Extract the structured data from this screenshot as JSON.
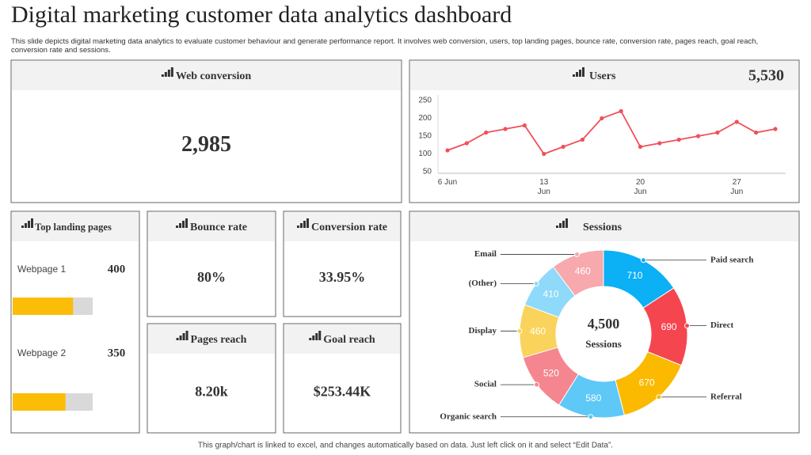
{
  "header": {
    "title": "Digital marketing customer data analytics dashboard",
    "subtitle": "This slide depicts digital marketing data analytics to evaluate customer behaviour and generate performance report. It involves web conversion, users, top landing pages, bounce rate, conversion rate, pages reach, goal reach, conversion rate and sessions."
  },
  "cards": [
    {
      "title": "Web conversion",
      "value": "2,985"
    },
    {
      "title": "Bounce rate",
      "value": "80%"
    },
    {
      "title": "Conversion rate",
      "value": "33.95%"
    },
    {
      "title": "Pages reach",
      "value": "8.20k"
    },
    {
      "title": "Goal reach",
      "value": "$253.44K"
    }
  ],
  "landing": {
    "title": "Top landing pages",
    "xlim": [
      0,
      530
    ],
    "color": "#fbbd08",
    "pages": [
      {
        "name": "Webpage 1",
        "value": 400
      },
      {
        "name": "Webpage 2",
        "value": 350
      }
    ]
  },
  "chart_data": [
    {
      "type": "line",
      "title": "Users",
      "total": "5,530",
      "color": "#f0505a",
      "categories": [
        "6 Jun",
        null,
        null,
        null,
        null,
        "13\nJun",
        null,
        null,
        null,
        null,
        "20\nJun",
        null,
        null,
        null,
        null,
        "27\nJun",
        null,
        null
      ],
      "values": [
        110,
        130,
        160,
        170,
        180,
        100,
        120,
        140,
        200,
        220,
        120,
        130,
        140,
        150,
        160,
        190,
        160,
        170
      ],
      "ylim": [
        50,
        250
      ],
      "yticks": [
        50,
        100,
        150,
        200,
        250
      ],
      "grid": false
    },
    {
      "type": "donut",
      "title": "Sessions",
      "center_value": "4,500",
      "center_label": "Sessions",
      "categories": [
        "Paid search",
        "Direct",
        "Referral",
        "Organic search",
        "Social",
        "Display",
        "(Other)",
        "Email"
      ],
      "values": [
        710,
        690,
        670,
        580,
        520,
        460,
        410,
        460
      ],
      "colors": [
        "#0bb0f5",
        "#f5454f",
        "#fbb900",
        "#5ec8f7",
        "#f5868f",
        "#fad35c",
        "#8fd9fb",
        "#f7a9ae"
      ]
    }
  ],
  "footer": "This graph/chart is linked to excel, and changes automatically based on data. Just left click on it and select “Edit Data”."
}
